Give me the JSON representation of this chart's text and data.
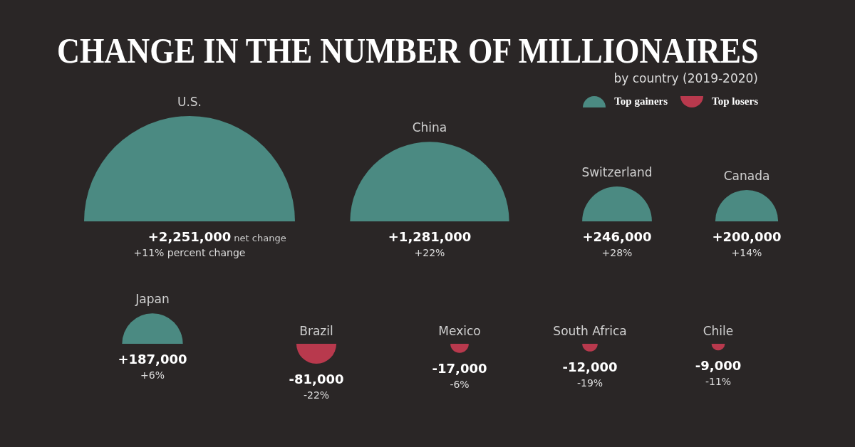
{
  "chart_data": {
    "type": "other",
    "title": "CHANGE IN THE NUMBER OF MILLIONAIRES",
    "subtitle": "by country (2019-2020)",
    "legend": "top right",
    "categories": [
      "U.S.",
      "China",
      "Switzerland",
      "Canada",
      "Japan",
      "Brazil",
      "Mexico",
      "South Africa",
      "Chile"
    ],
    "series": [
      {
        "name": "Top gainers",
        "color": "#4b8a82",
        "values": [
          2251000,
          1281000,
          246000,
          200000,
          187000,
          null,
          null,
          null,
          null
        ],
        "value_labels": [
          "+2,251,000",
          "+1,281,000",
          "+246,000",
          "+200,000",
          "+187,000",
          null,
          null,
          null,
          null
        ]
      },
      {
        "name": "Top losers",
        "color": "#b8394d",
        "values": [
          null,
          null,
          null,
          null,
          null,
          -81000,
          -17000,
          -12000,
          -9000
        ],
        "value_labels": [
          null,
          null,
          null,
          null,
          null,
          "-81,000",
          "-17,000",
          "-12,000",
          "-9,000"
        ]
      }
    ],
    "annotations": [
      {
        "text": "net change",
        "x": "U.S."
      },
      {
        "text": "+11% percent change",
        "x": "U.S."
      },
      {
        "text": "+22%",
        "x": "China"
      },
      {
        "text": "+28%",
        "x": "Switzerland"
      },
      {
        "text": "+14%",
        "x": "Canada"
      },
      {
        "text": "+6%",
        "x": "Japan"
      },
      {
        "text": "-22%",
        "x": "Brazil"
      },
      {
        "text": "-6%",
        "x": "Mexico"
      },
      {
        "text": "-19%",
        "x": "South Africa"
      },
      {
        "text": "-11%",
        "x": "Chile"
      }
    ]
  }
}
